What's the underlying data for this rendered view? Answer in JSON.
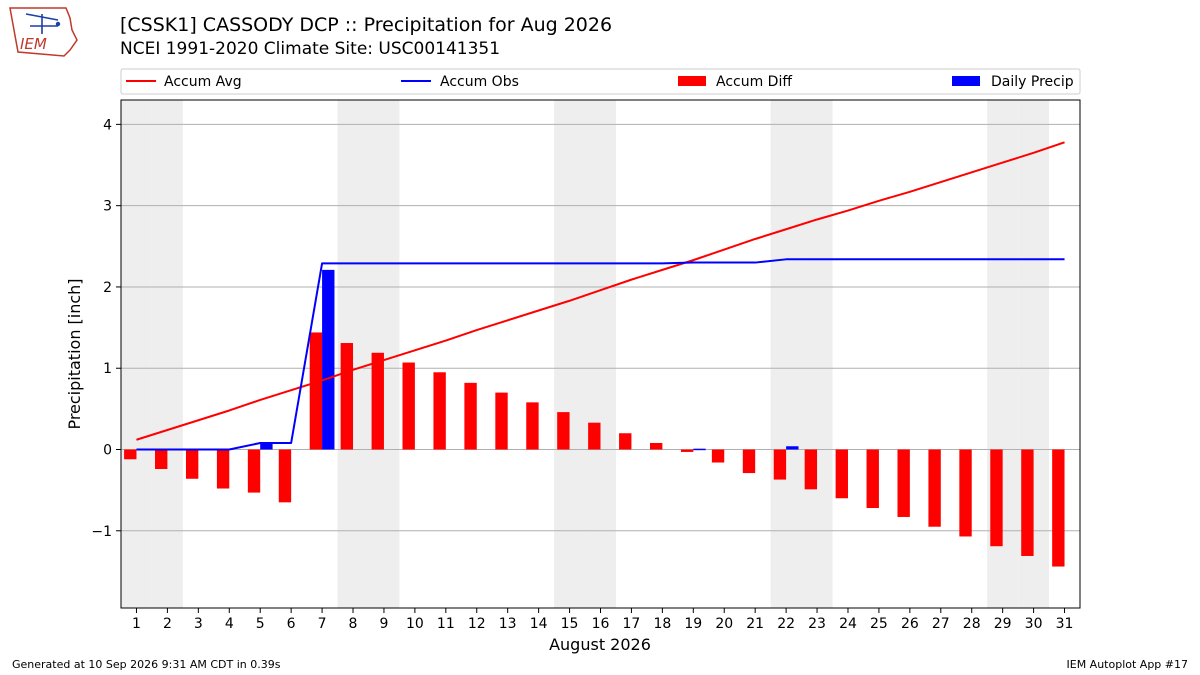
{
  "logo_text": "IEM",
  "title_line1": "[CSSK1] CASSODY DCP :: Precipitation for Aug 2026",
  "title_line2": "NCEI 1991-2020 Climate Site: USC00141351",
  "footer_left": "Generated at 10 Sep 2026 9:31 AM CDT in 0.39s",
  "footer_right": "IEM Autoplot App #17",
  "colors": {
    "accum_avg": "#ff0000",
    "accum_obs": "#0000ff",
    "accum_diff": "#ff0000",
    "daily_precip": "#0000ff",
    "weekend_shade": "#eeeeee",
    "grid": "#b0b0b0"
  },
  "chart_data": {
    "type": "bar",
    "xlabel": "August 2026",
    "ylabel": "Precipitation [inch]",
    "xlim": [
      0.5,
      31.5
    ],
    "ylim": [
      -1.95,
      4.3
    ],
    "yticks": [
      -1,
      0,
      1,
      2,
      3,
      4
    ],
    "ytick_labels": [
      "−1",
      "0",
      "1",
      "2",
      "3",
      "4"
    ],
    "grid": "horizontal",
    "legend_position": "top",
    "shaded_weekend_days": [
      1,
      2,
      8,
      9,
      15,
      16,
      22,
      23,
      29,
      30
    ],
    "categories": [
      "1",
      "2",
      "3",
      "4",
      "5",
      "6",
      "7",
      "8",
      "9",
      "10",
      "11",
      "12",
      "13",
      "14",
      "15",
      "16",
      "17",
      "18",
      "19",
      "20",
      "21",
      "22",
      "23",
      "24",
      "25",
      "26",
      "27",
      "28",
      "29",
      "30",
      "31"
    ],
    "series": [
      {
        "name": "Accum Avg",
        "kind": "line",
        "values": [
          0.12,
          0.24,
          0.36,
          0.48,
          0.61,
          0.73,
          0.85,
          0.98,
          1.1,
          1.22,
          1.34,
          1.47,
          1.59,
          1.71,
          1.83,
          1.96,
          2.09,
          2.21,
          2.33,
          2.46,
          2.59,
          2.71,
          2.83,
          2.94,
          3.06,
          3.17,
          3.29,
          3.41,
          3.53,
          3.65,
          3.78
        ]
      },
      {
        "name": "Accum Obs",
        "kind": "line",
        "values": [
          0.0,
          0.0,
          0.0,
          0.0,
          0.08,
          0.08,
          2.29,
          2.29,
          2.29,
          2.29,
          2.29,
          2.29,
          2.29,
          2.29,
          2.29,
          2.29,
          2.29,
          2.29,
          2.3,
          2.3,
          2.3,
          2.34,
          2.34,
          2.34,
          2.34,
          2.34,
          2.34,
          2.34,
          2.34,
          2.34,
          2.34
        ]
      },
      {
        "name": "Accum Diff",
        "kind": "bar",
        "values": [
          -0.12,
          -0.24,
          -0.36,
          -0.48,
          -0.53,
          -0.65,
          1.44,
          1.31,
          1.19,
          1.07,
          0.95,
          0.82,
          0.7,
          0.58,
          0.46,
          0.33,
          0.2,
          0.08,
          -0.03,
          -0.16,
          -0.29,
          -0.37,
          -0.49,
          -0.6,
          -0.72,
          -0.83,
          -0.95,
          -1.07,
          -1.19,
          -1.31,
          -1.44
        ]
      },
      {
        "name": "Daily Precip",
        "kind": "bar",
        "values": [
          0,
          0,
          0,
          0,
          0.08,
          0,
          2.21,
          0,
          0,
          0,
          0,
          0,
          0,
          0,
          0,
          0,
          0,
          0,
          0.01,
          0,
          0,
          0.04,
          0,
          0,
          0,
          0,
          0,
          0,
          0,
          0,
          0
        ]
      }
    ]
  }
}
